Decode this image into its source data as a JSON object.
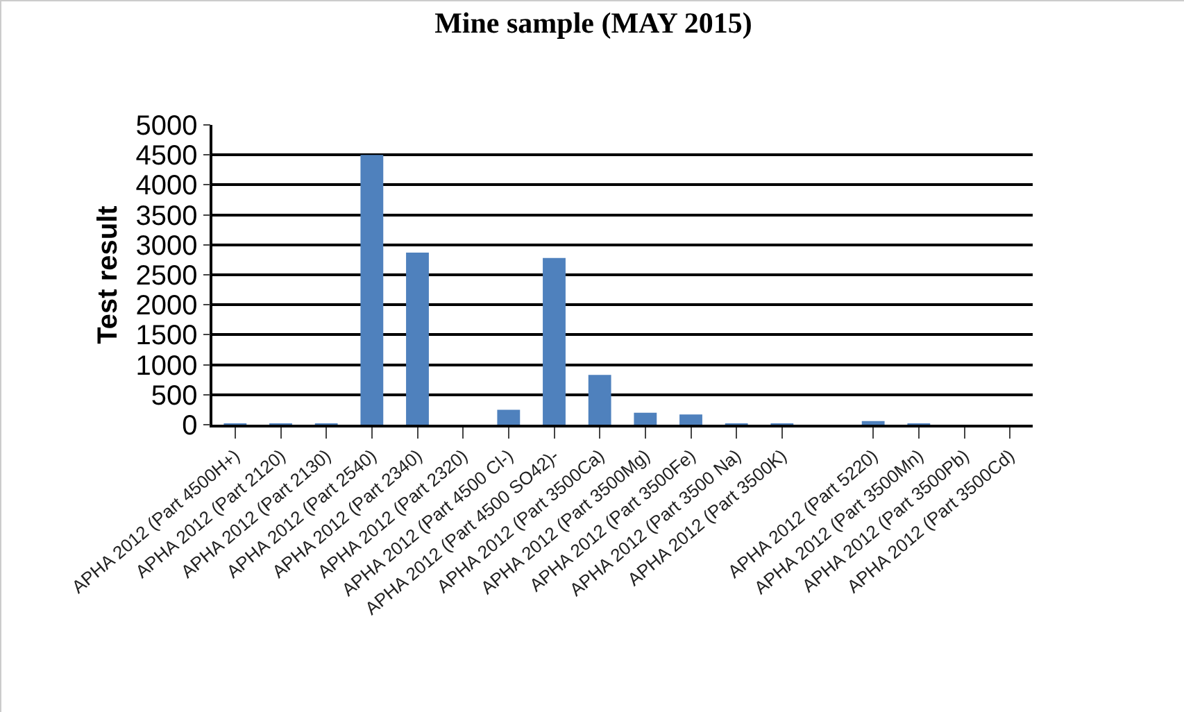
{
  "chart_data": {
    "type": "bar",
    "title": "Mine sample (MAY 2015)",
    "ylabel": "Test result",
    "categories": [
      "APHA 2012 (Part 4500H+)",
      "APHA 2012 (Part 2120)",
      "APHA 2012 (Part 2130)",
      "APHA 2012 (Part 2540)",
      "APHA 2012 (Part 2340)",
      "APHA 2012 (Part 2320)",
      "APHA 2012 (Part 4500 Cl-)",
      "APHA 2012 (Part 4500 SO42)-",
      "APHA 2012 (Part 3500Ca)",
      "APHA 2012 (Part 3500Mg)",
      "APHA 2012 (Part 3500Fe)",
      "APHA 2012 (Part 3500 Na)",
      "APHA 2012 (Part 3500K)",
      null,
      "APHA 2012 (Part 5220)",
      "APHA 2012 (Part 3500Mn)",
      "APHA 2012 (Part 3500Pb)",
      "APHA 2012 (Part 3500Cd)"
    ],
    "values": [
      7,
      10,
      20,
      4500,
      2870,
      0,
      250,
      2780,
      830,
      200,
      170,
      20,
      5,
      null,
      60,
      5,
      0,
      0
    ],
    "color": "#4f81bd",
    "ylim": [
      0,
      5000
    ],
    "yticks": [
      0,
      500,
      1000,
      1500,
      2000,
      2500,
      3000,
      3500,
      4000,
      4500,
      5000
    ],
    "grid": "y",
    "legend": false
  }
}
